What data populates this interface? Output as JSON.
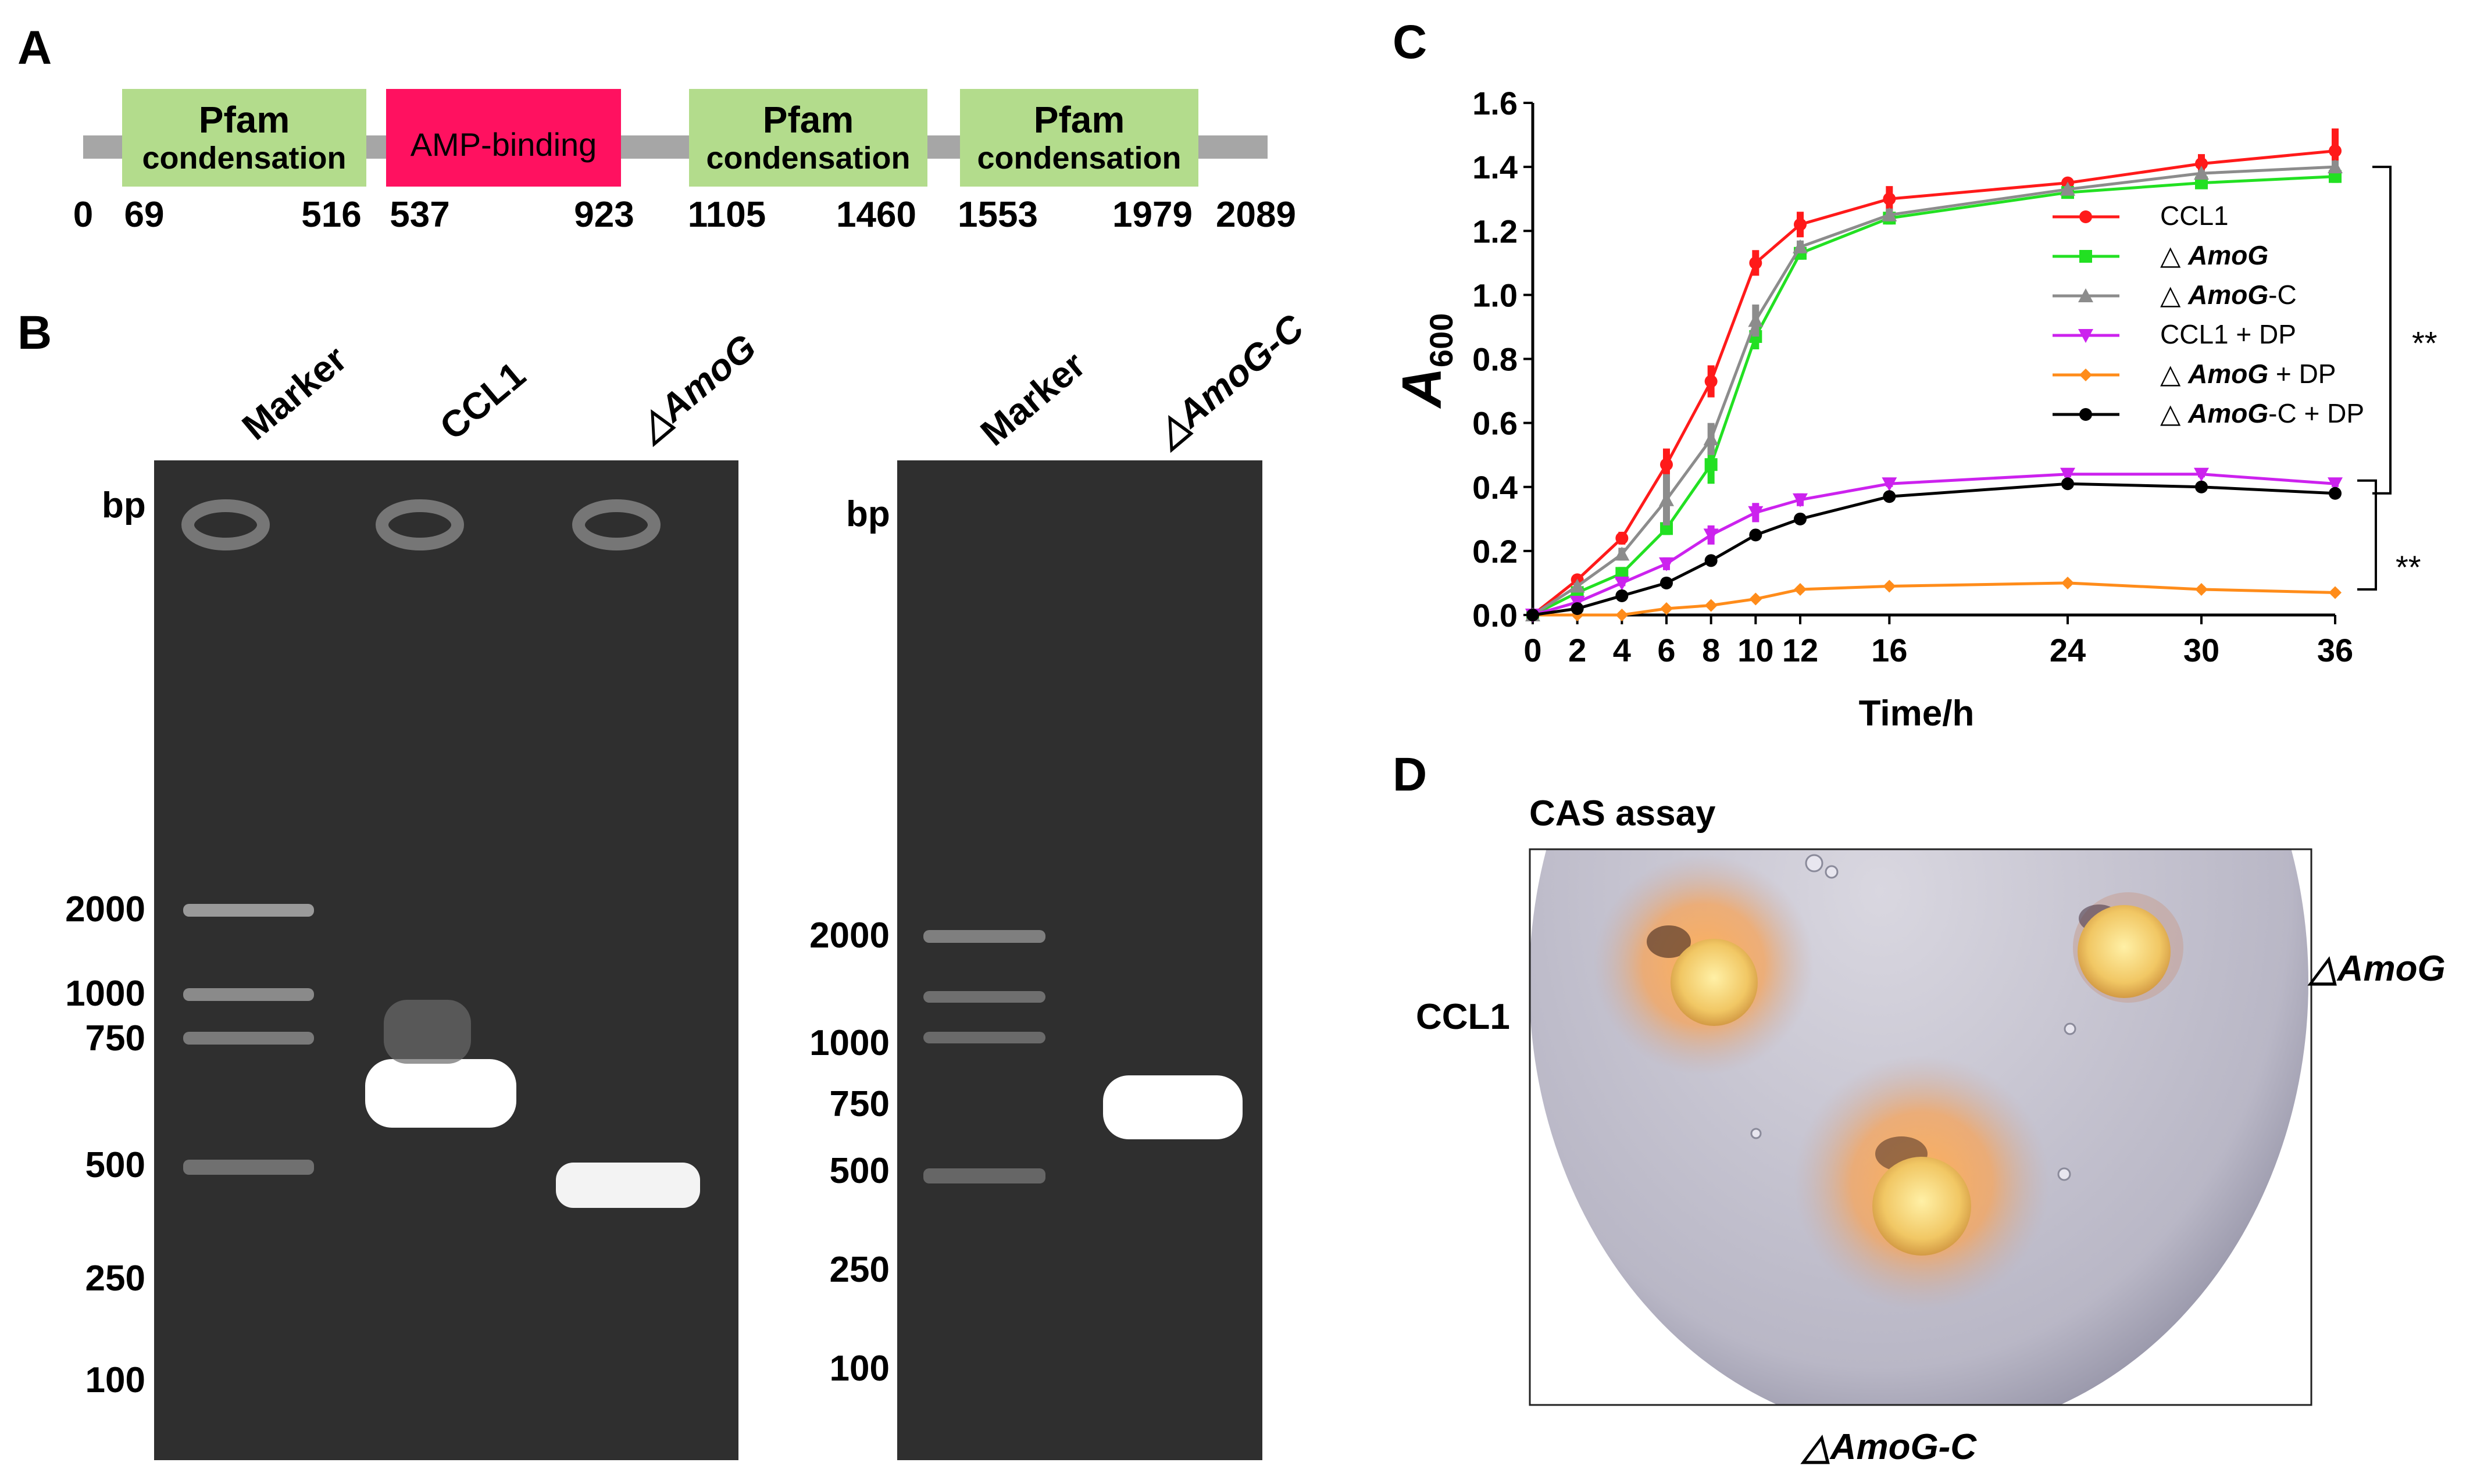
{
  "panels": {
    "a": "A",
    "b": "B",
    "c": "C",
    "d": "D"
  },
  "domains": {
    "items": [
      {
        "label1": "Pfam",
        "label2": "condensation",
        "color": "#b3dc8c"
      },
      {
        "label1": "AMP-binding",
        "label2": "",
        "color": "#ff1160"
      },
      {
        "label1": "Pfam",
        "label2": "condensation",
        "color": "#b3dc8c"
      },
      {
        "label1": "Pfam",
        "label2": "condensation",
        "color": "#b3dc8c"
      }
    ],
    "positions": [
      "0",
      "69",
      "516",
      "537",
      "923",
      "1105",
      "1460",
      "1553",
      "1979",
      "2089"
    ],
    "backbone_color": "#a6a6a6"
  },
  "gel1": {
    "lanes": [
      "Marker",
      "CCL1",
      "△AmoG"
    ],
    "bp_label": "bp",
    "ladder": [
      "2000",
      "1000",
      "750",
      "500",
      "250",
      "100"
    ]
  },
  "gel2": {
    "lanes": [
      "Marker",
      "△AmoG-C"
    ],
    "bp_label": "bp",
    "ladder": [
      "2000",
      "1000",
      "750",
      "500",
      "250",
      "100"
    ]
  },
  "chart_data": {
    "type": "line",
    "title": "",
    "xlabel": "Time/h",
    "ylabel": "A600",
    "xlim": [
      0,
      36
    ],
    "ylim": [
      0.0,
      1.6
    ],
    "xticks": [
      0,
      2,
      4,
      6,
      8,
      10,
      12,
      16,
      24,
      30,
      36
    ],
    "yticks": [
      0.0,
      0.2,
      0.4,
      0.6,
      0.8,
      1.0,
      1.2,
      1.4,
      1.6
    ],
    "legend_position": "right",
    "significance": [
      "**",
      "**"
    ],
    "x": [
      0,
      2,
      4,
      6,
      8,
      10,
      12,
      16,
      24,
      30,
      36
    ],
    "series": [
      {
        "name": "CCL1",
        "color": "#ff1a1a",
        "marker": "circle",
        "values": [
          0.0,
          0.11,
          0.24,
          0.47,
          0.73,
          1.1,
          1.22,
          1.3,
          1.35,
          1.41,
          1.45
        ],
        "errors": [
          0,
          0.01,
          0.02,
          0.05,
          0.05,
          0.04,
          0.04,
          0.04,
          0.01,
          0.03,
          0.07
        ]
      },
      {
        "name": "△ AmoG",
        "color": "#22e022",
        "marker": "square",
        "values": [
          0.0,
          0.07,
          0.13,
          0.27,
          0.47,
          0.87,
          1.13,
          1.24,
          1.32,
          1.35,
          1.37
        ],
        "errors": [
          0,
          0.01,
          0.02,
          0.02,
          0.06,
          0.04,
          0.02,
          0.02,
          0.01,
          0.01,
          0.02
        ]
      },
      {
        "name": "△ AmoG-C",
        "color": "#8c8c8c",
        "marker": "triangle",
        "values": [
          0.0,
          0.09,
          0.19,
          0.36,
          0.55,
          0.92,
          1.15,
          1.25,
          1.33,
          1.38,
          1.4
        ],
        "errors": [
          0,
          0.01,
          0.02,
          0.08,
          0.05,
          0.05,
          0.02,
          0.02,
          0.01,
          0.01,
          0.02
        ]
      },
      {
        "name": "CCL1 + DP",
        "color": "#cc22ee",
        "marker": "triangle-down",
        "values": [
          0.0,
          0.04,
          0.1,
          0.16,
          0.25,
          0.32,
          0.36,
          0.41,
          0.44,
          0.44,
          0.41
        ],
        "errors": [
          0,
          0.01,
          0.01,
          0.02,
          0.03,
          0.03,
          0.02,
          0.01,
          0.01,
          0.01,
          0.01
        ]
      },
      {
        "name": "△ AmoG + DP",
        "color": "#ff8c1a",
        "marker": "diamond",
        "values": [
          0.0,
          0.0,
          0.0,
          0.02,
          0.03,
          0.05,
          0.08,
          0.09,
          0.1,
          0.08,
          0.07
        ],
        "errors": [
          0,
          0,
          0,
          0,
          0,
          0,
          0.01,
          0.01,
          0.01,
          0.01,
          0.01
        ]
      },
      {
        "name": "△ AmoG-C + DP",
        "color": "#000000",
        "marker": "circle",
        "values": [
          0.0,
          0.02,
          0.06,
          0.1,
          0.17,
          0.25,
          0.3,
          0.37,
          0.41,
          0.4,
          0.38
        ],
        "errors": [
          0,
          0,
          0,
          0,
          0,
          0,
          0,
          0,
          0,
          0,
          0
        ]
      }
    ]
  },
  "cas": {
    "title": "CAS assay",
    "labels": [
      "CCL1",
      "△AmoG",
      "△AmoG-C"
    ]
  }
}
